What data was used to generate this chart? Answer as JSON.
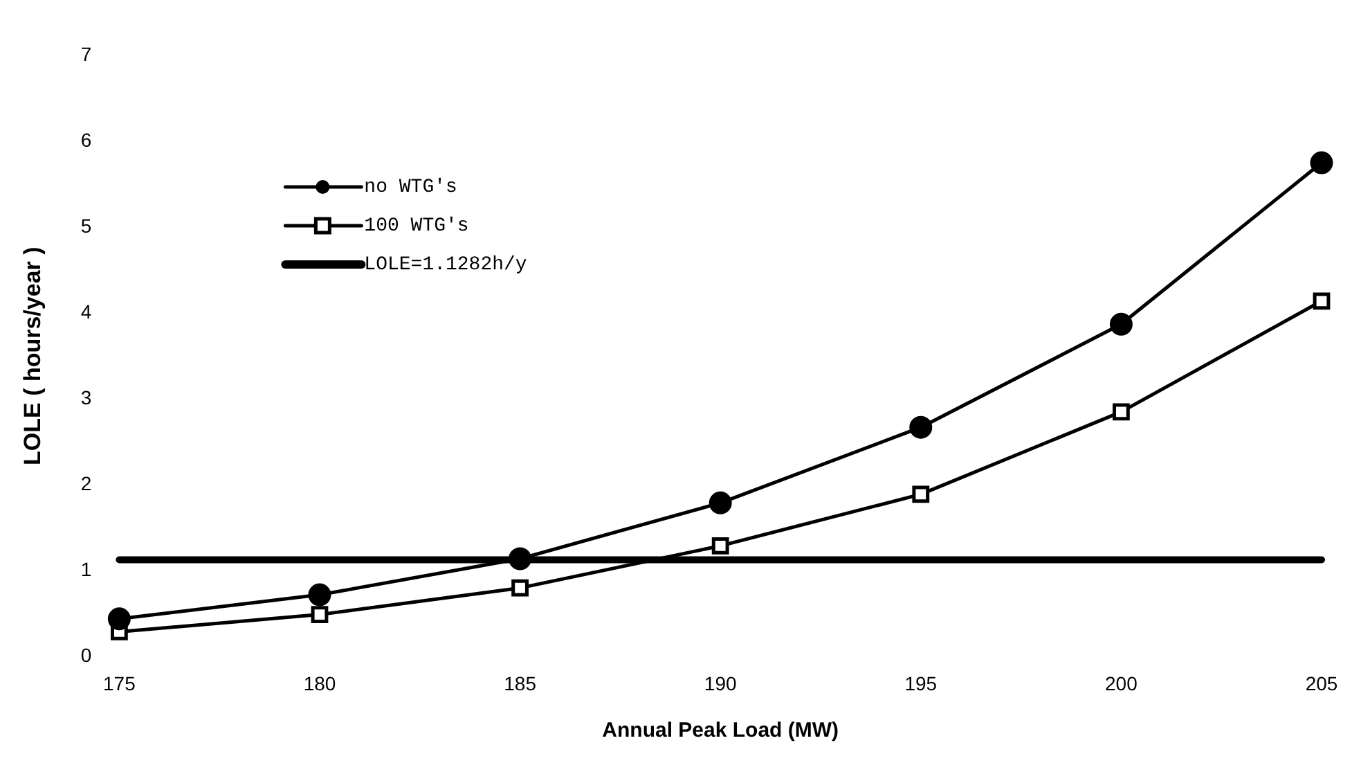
{
  "chart_data": {
    "type": "line",
    "xlabel": "Annual Peak Load (MW)",
    "ylabel": "LOLE ( hours/year )",
    "x": [
      175,
      180,
      185,
      190,
      195,
      200,
      205
    ],
    "xlim": [
      175,
      205
    ],
    "xticks": [
      175,
      180,
      185,
      190,
      195,
      200,
      205
    ],
    "ylim": [
      0,
      7
    ],
    "yticks": [
      0,
      1,
      2,
      3,
      4,
      5,
      6,
      7
    ],
    "series": [
      {
        "name": "no WTG's",
        "color": "#000000",
        "marker": "circle",
        "values": [
          0.44,
          0.72,
          1.14,
          1.79,
          2.67,
          3.87,
          5.75
        ]
      },
      {
        "name": "100 WTG's",
        "color": "#000000",
        "marker": "square",
        "values": [
          0.29,
          0.49,
          0.8,
          1.29,
          1.89,
          2.85,
          4.14
        ]
      }
    ],
    "ref_lines": [
      {
        "axis": "y",
        "value": 1.1282,
        "label": "LOLE=1.1282h/y",
        "color": "#000000"
      }
    ],
    "legend": "top left",
    "grid": false
  }
}
